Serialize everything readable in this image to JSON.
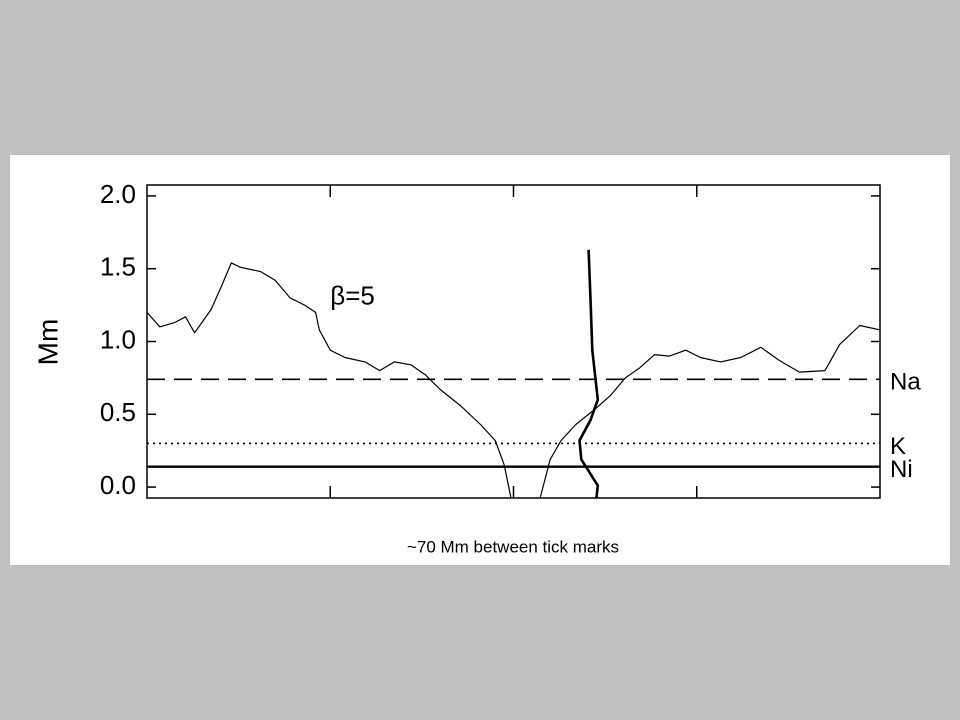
{
  "chart_data": {
    "type": "line",
    "ylabel": "Mm",
    "xlabel": "~70 Mm between tick marks",
    "xlim": [
      0,
      4
    ],
    "xticks": [
      1,
      2,
      3
    ],
    "ylim": [
      -0.075,
      2.075
    ],
    "yticks": [
      {
        "value": 0,
        "label": "0.0"
      },
      0.5,
      {
        "value": 1,
        "label": "1.0"
      },
      1.5,
      {
        "value": 2,
        "label": "2.0"
      }
    ],
    "annotations": [
      {
        "text": "β=5",
        "x": 1.0,
        "y": 1.3
      }
    ],
    "hlines": [
      {
        "label": "Na",
        "value": 0.74,
        "style": "dashed"
      },
      {
        "label": "K",
        "value": 0.3,
        "style": "dotted"
      },
      {
        "label": "Ni",
        "value": 0.14,
        "style": "solid"
      }
    ],
    "series": [
      {
        "color": "#000000",
        "width": 1.2,
        "x": [
          0,
          0.07,
          0.15,
          0.21,
          0.26,
          0.35,
          0.41,
          0.46,
          0.51,
          0.62,
          0.7,
          0.78,
          0.86,
          0.92,
          0.94,
          1.0,
          1.08,
          1.19,
          1.27,
          1.35,
          1.44,
          1.52,
          1.6,
          1.71,
          1.82,
          1.9,
          1.95,
          1.99,
          2.14,
          2.2,
          2.26,
          2.34,
          2.44,
          2.53,
          2.61,
          2.69,
          2.77,
          2.85,
          2.94,
          3.02,
          3.13,
          3.24,
          3.35,
          3.45,
          3.56,
          3.7,
          3.78,
          3.89,
          4.0
        ],
        "values": [
          1.2,
          1.1,
          1.13,
          1.17,
          1.06,
          1.22,
          1.39,
          1.54,
          1.51,
          1.48,
          1.42,
          1.3,
          1.25,
          1.2,
          1.08,
          0.94,
          0.89,
          0.86,
          0.8,
          0.86,
          0.84,
          0.77,
          0.67,
          0.56,
          0.43,
          0.32,
          0.15,
          -0.1,
          -0.1,
          0.19,
          0.32,
          0.43,
          0.53,
          0.63,
          0.75,
          0.82,
          0.91,
          0.9,
          0.94,
          0.89,
          0.86,
          0.89,
          0.96,
          0.87,
          0.79,
          0.8,
          0.98,
          1.11,
          1.08
        ]
      },
      {
        "color": "#000000",
        "width": 2.6,
        "x": [
          2.41,
          2.42,
          2.43,
          2.46,
          2.42,
          2.36,
          2.37,
          2.46,
          2.45
        ],
        "values": [
          1.63,
          1.29,
          0.94,
          0.6,
          0.46,
          0.32,
          0.19,
          0.01,
          -0.1
        ]
      }
    ]
  }
}
